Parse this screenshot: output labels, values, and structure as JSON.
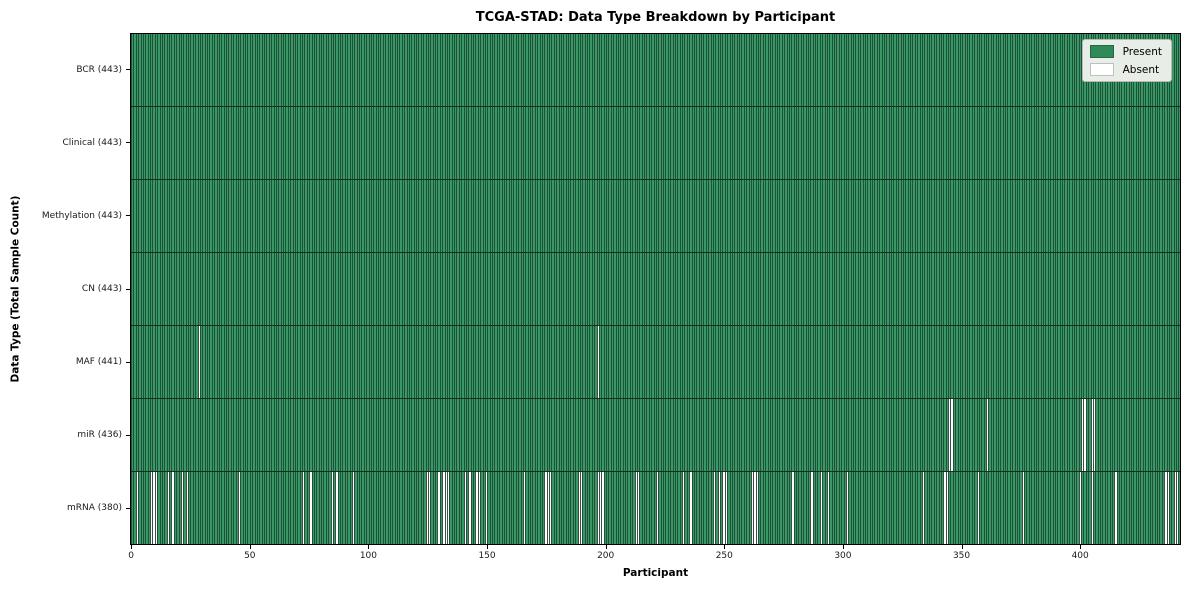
{
  "chart_data": {
    "type": "heatmap",
    "title": "TCGA-STAD: Data Type Breakdown by Participant",
    "xlabel": "Participant",
    "ylabel": "Data Type (Total Sample Count)",
    "n_participants": 443,
    "x_ticks": [
      0,
      50,
      100,
      150,
      200,
      250,
      300,
      350,
      400
    ],
    "x_range": [
      0,
      443
    ],
    "grid": false,
    "legend_position": "upper right",
    "legend": [
      {
        "label": "Present",
        "color": "#2e8b57"
      },
      {
        "label": "Absent",
        "color": "#ffffff"
      }
    ],
    "colors": {
      "present": "#3a9867",
      "absent": "#ffffff",
      "cell_edge": "#1d5138",
      "row_divider": "#122c1e",
      "plot_border": "#000000",
      "legend_bg": "#e9ede7"
    },
    "rows": [
      {
        "key": "bcr",
        "data_type": "BCR",
        "label": "BCR (443)",
        "present_count": 443,
        "absent": []
      },
      {
        "key": "clinical",
        "data_type": "Clinical",
        "label": "Clinical (443)",
        "present_count": 443,
        "absent": []
      },
      {
        "key": "methylation",
        "data_type": "Methylation",
        "label": "Methylation (443)",
        "present_count": 443,
        "absent": []
      },
      {
        "key": "cn",
        "data_type": "CN",
        "label": "CN (443)",
        "present_count": 443,
        "absent": []
      },
      {
        "key": "maf",
        "data_type": "MAF",
        "label": "MAF (441)",
        "present_count": 441,
        "absent": [
          28,
          196
        ]
      },
      {
        "key": "mir",
        "data_type": "miR",
        "label": "miR (436)",
        "present_count": 436,
        "absent": [
          344,
          345,
          360,
          400,
          401,
          404,
          405
        ]
      },
      {
        "key": "mrna",
        "data_type": "mRNA",
        "label": "mRNA (380)",
        "present_count": 380,
        "absent": [
          2,
          8,
          9,
          10,
          15,
          17,
          21,
          23,
          45,
          72,
          75,
          84,
          86,
          93,
          124,
          125,
          129,
          131,
          132,
          133,
          140,
          142,
          145,
          146,
          149,
          165,
          174,
          175,
          176,
          188,
          189,
          196,
          197,
          198,
          212,
          213,
          221,
          232,
          235,
          245,
          247,
          249,
          250,
          261,
          262,
          263,
          278,
          286,
          290,
          293,
          301,
          333,
          342,
          343,
          356,
          375,
          399,
          404,
          414,
          435,
          436,
          439,
          440
        ]
      }
    ]
  }
}
